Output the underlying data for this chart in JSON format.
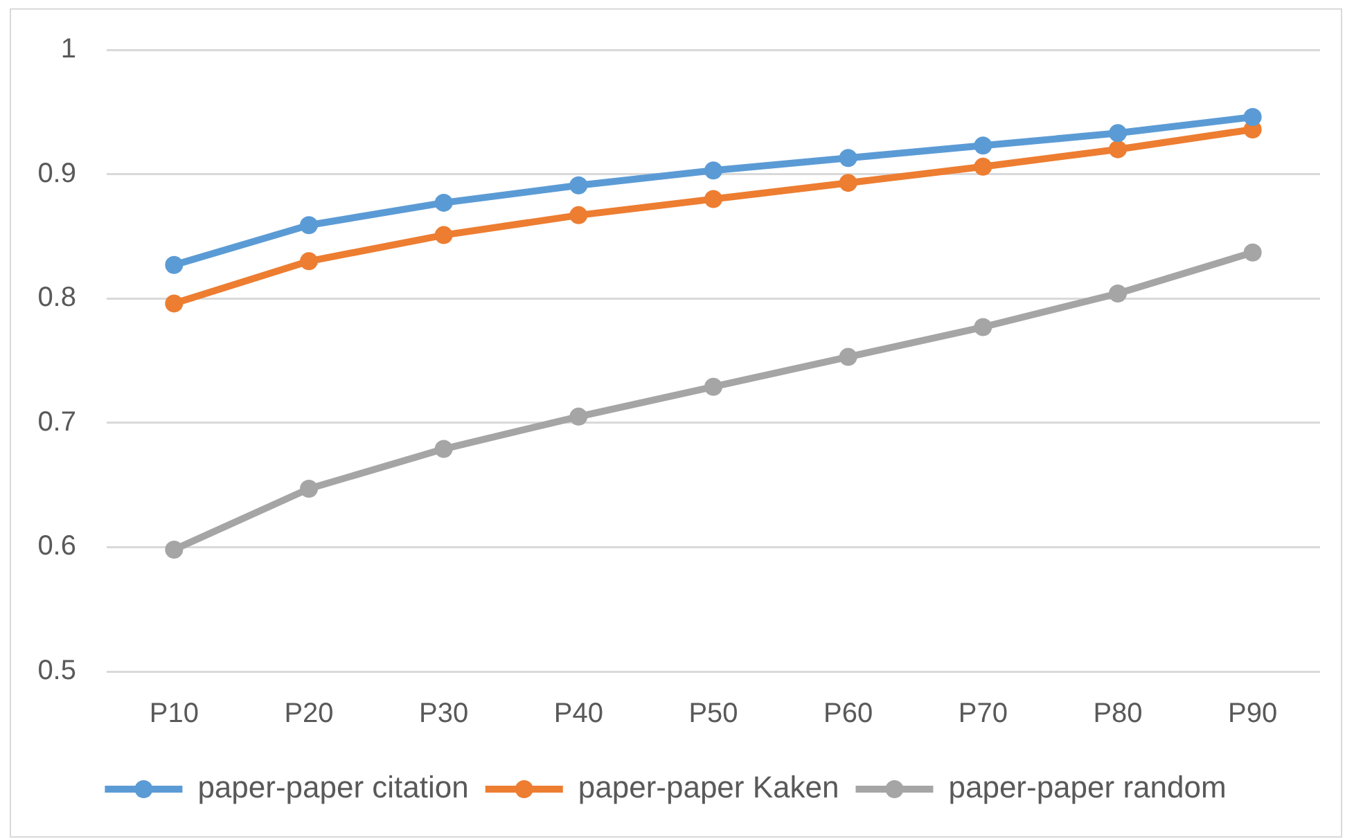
{
  "chart_data": {
    "type": "line",
    "categories": [
      "P10",
      "P20",
      "P30",
      "P40",
      "P50",
      "P60",
      "P70",
      "P80",
      "P90"
    ],
    "series": [
      {
        "name": "paper-paper citation",
        "color": "#5b9bd5",
        "values": [
          0.827,
          0.859,
          0.877,
          0.891,
          0.903,
          0.913,
          0.923,
          0.933,
          0.946
        ]
      },
      {
        "name": "paper-paper Kaken",
        "color": "#ed7d31",
        "values": [
          0.796,
          0.83,
          0.851,
          0.867,
          0.88,
          0.893,
          0.906,
          0.92,
          0.936
        ]
      },
      {
        "name": "paper-paper random",
        "color": "#a5a5a5",
        "values": [
          0.598,
          0.647,
          0.679,
          0.705,
          0.729,
          0.753,
          0.777,
          0.804,
          0.837
        ]
      }
    ],
    "ylim": [
      0.5,
      1
    ],
    "yticks": [
      0.5,
      0.6,
      0.7,
      0.8,
      0.9,
      1
    ],
    "grid": "y",
    "legend": "bottom",
    "marker": "circle",
    "line_style": "solid"
  }
}
